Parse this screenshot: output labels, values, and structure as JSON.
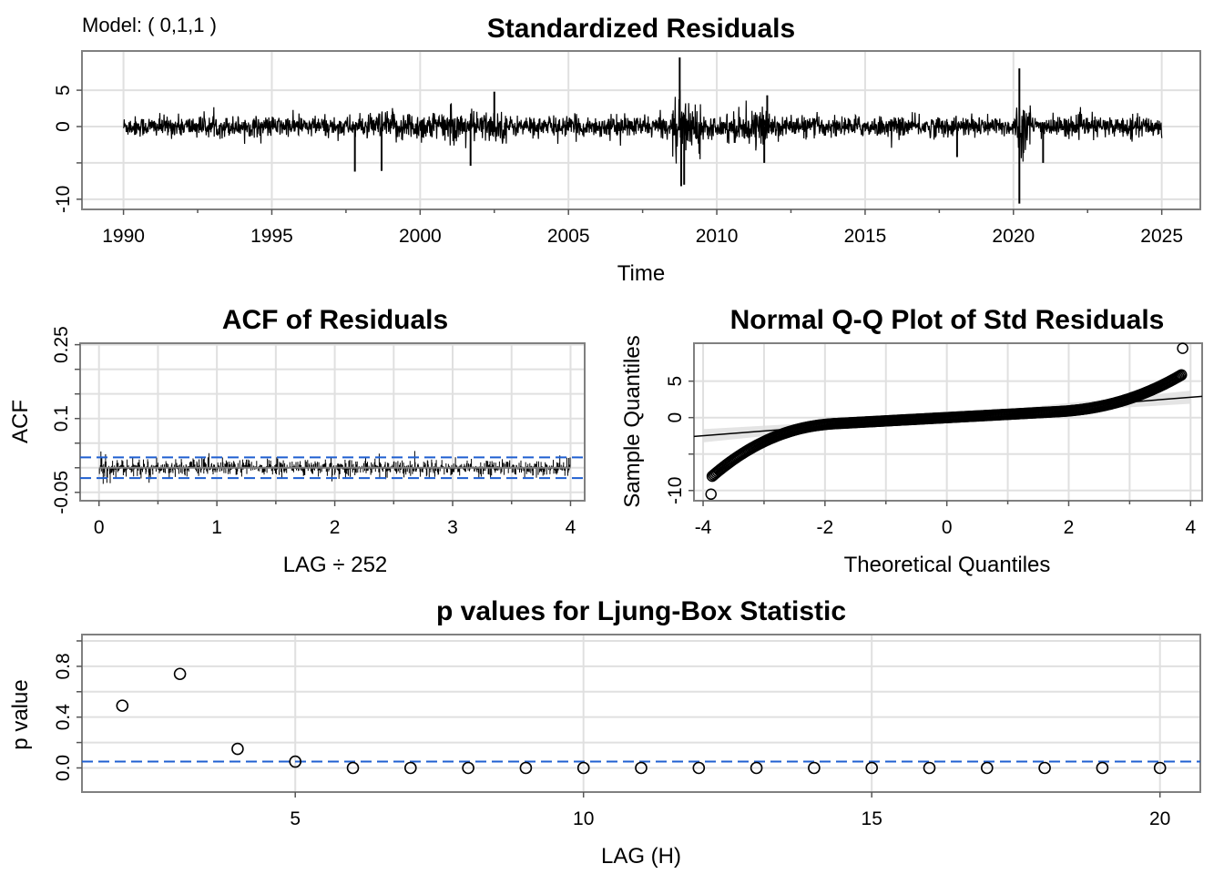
{
  "model_label": "Model: ( 0,1,1 )",
  "chart_data": [
    {
      "id": "resid",
      "type": "line",
      "title": "Standardized Residuals",
      "xlabel": "Time",
      "ylabel": "",
      "xlim": [
        1988.6,
        2026.3
      ],
      "ylim": [
        -11.4,
        10.4
      ],
      "xticks": [
        1990,
        1995,
        2000,
        2005,
        2010,
        2015,
        2020,
        2025
      ],
      "yticks": [
        5,
        0,
        -10
      ],
      "yminor": [
        -5
      ],
      "series_range": [
        1990.0,
        2025.0
      ],
      "spikes": [
        [
          1997.8,
          -6.2
        ],
        [
          1998.7,
          -6.1
        ],
        [
          2001.7,
          -5.4
        ],
        [
          2002.5,
          4.8
        ],
        [
          2008.75,
          9.5
        ],
        [
          2008.8,
          -8.2
        ],
        [
          2008.9,
          -8.0
        ],
        [
          2011.6,
          -5.0
        ],
        [
          2011.7,
          4.3
        ],
        [
          2018.1,
          -4.2
        ],
        [
          2020.2,
          -10.6
        ],
        [
          2020.2,
          8.0
        ],
        [
          2021.0,
          -5.0
        ]
      ],
      "volatile_periods": [
        [
          2008.5,
          2009.5,
          2.6
        ],
        [
          2020.1,
          2020.6,
          2.6
        ],
        [
          1998.5,
          2003.0,
          1.5
        ],
        [
          2010.3,
          2012.0,
          1.5
        ]
      ]
    },
    {
      "id": "acf",
      "type": "bar",
      "title": "ACF of Residuals",
      "xlabel": "LAG ÷ 252",
      "ylabel": "ACF",
      "xlim": [
        -0.16,
        4.12
      ],
      "ylim": [
        -0.067,
        0.253
      ],
      "xticks": [
        0,
        1,
        2,
        3,
        4
      ],
      "yticks": [
        0.25,
        0.1,
        -0.05
      ],
      "yminor": [
        0.2,
        0.15,
        0.05,
        0.0
      ],
      "confidence_bounds": [
        0.021,
        -0.021
      ],
      "max_lag": 4
    },
    {
      "id": "qq",
      "type": "scatter",
      "title": "Normal Q-Q Plot of Std Residuals",
      "xlabel": "Theoretical Quantiles",
      "ylabel": "Sample Quantiles",
      "xlim": [
        -4.15,
        4.19
      ],
      "ylim": [
        -11.4,
        10.2
      ],
      "xticks": [
        -4,
        -2,
        0,
        2,
        4
      ],
      "yticks": [
        5,
        0,
        -10
      ],
      "yminor": [
        -5
      ],
      "ref_line": {
        "intercept": 0.15,
        "slope": 0.66
      },
      "extremes": [
        [
          -3.87,
          -10.5
        ],
        [
          3.87,
          9.5
        ]
      ]
    },
    {
      "id": "ljung",
      "type": "scatter",
      "title": "p values for Ljung-Box Statistic",
      "xlabel": "LAG (H)",
      "ylabel": "p value",
      "xlim": [
        1.3,
        20.7
      ],
      "ylim": [
        -0.19,
        1.05
      ],
      "xticks": [
        5,
        10,
        15,
        20
      ],
      "yticks": [
        "0.0",
        "0.4",
        "0.8"
      ],
      "yminor": [
        0.2,
        0.6,
        1.0
      ],
      "x": [
        2,
        3,
        4,
        5,
        6,
        7,
        8,
        9,
        10,
        11,
        12,
        13,
        14,
        15,
        16,
        17,
        18,
        19,
        20
      ],
      "values": [
        0.49,
        0.74,
        0.15,
        0.05,
        0,
        0,
        0,
        0,
        0,
        0,
        0,
        0,
        0,
        0,
        0,
        0,
        0,
        0,
        0
      ],
      "threshold": 0.05
    }
  ]
}
